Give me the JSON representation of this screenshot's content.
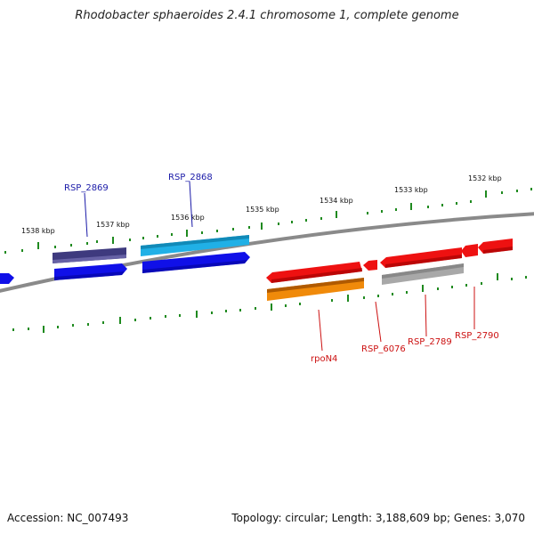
{
  "title": "Rhodobacter sphaeroides 2.4.1 chromosome 1, complete genome",
  "footer": {
    "accession": "Accession: NC_007493",
    "summary": "Topology: circular; Length: 3,188,609 bp; Genes: 3,070"
  },
  "scale_labels": [
    "1538 kbp",
    "1537 kbp",
    "1536 kbp",
    "1535 kbp",
    "1534 kbp",
    "1533 kbp",
    "1532 kbp"
  ],
  "gene_labels": {
    "rsp2869": "RSP_2869",
    "rsp2868": "RSP_2868",
    "rpon4": "rpoN4",
    "rsp6076": "RSP_6076",
    "rsp2789": "RSP_2789",
    "rsp2790": "RSP_2790"
  },
  "colors": {
    "backbone": "#8a8a8a",
    "tick": "#1f8a1f",
    "label_blue": "#1a1aa8",
    "label_red": "#cc1111",
    "gene_blue": "#1010e8",
    "gene_dark_blue": "#3e3a7e",
    "gene_light_blue": "#20b0e6",
    "gene_red": "#ee1111",
    "gene_orange": "#f08a0a",
    "gene_grey": "#a8a8a8"
  }
}
